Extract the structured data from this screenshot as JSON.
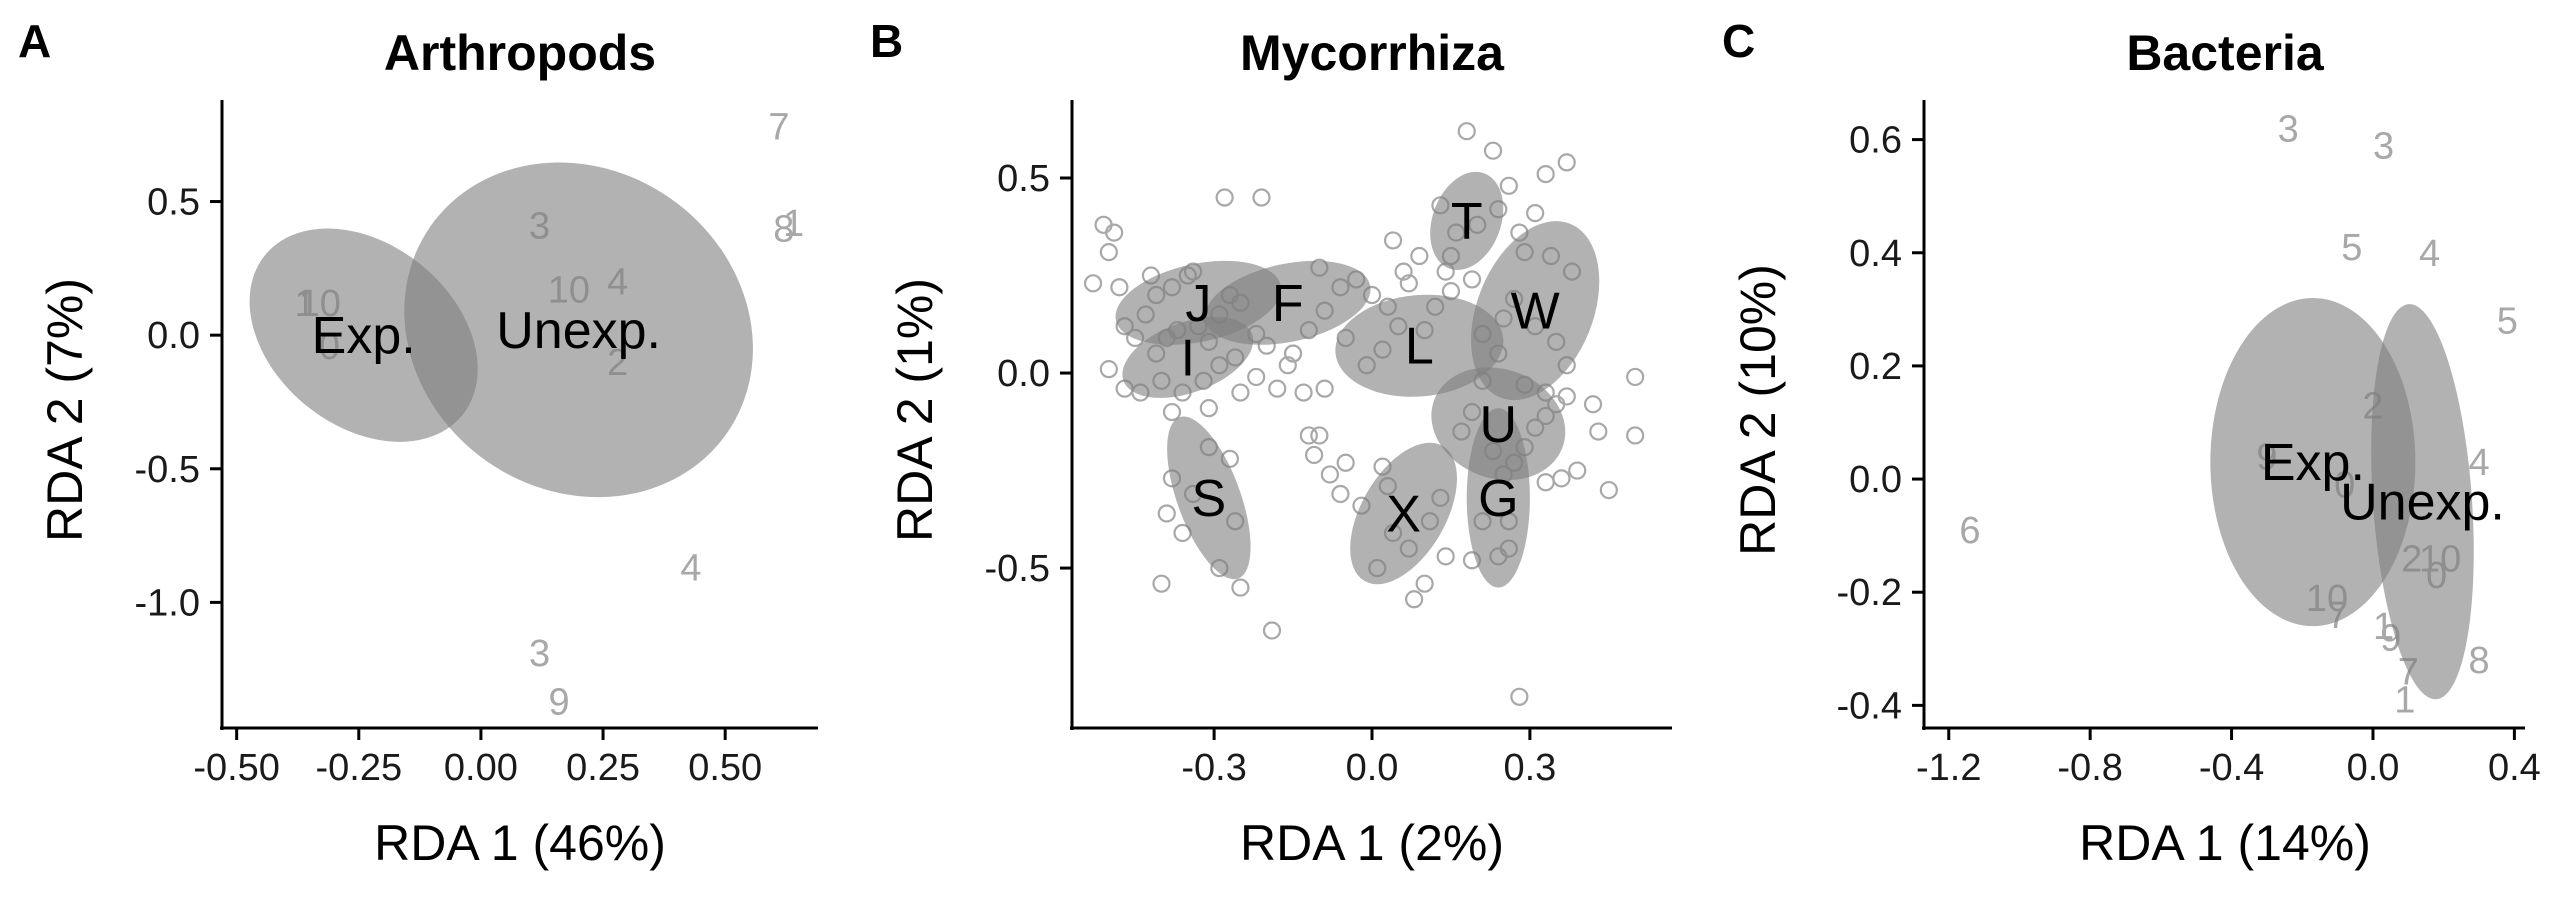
{
  "chart_data": [
    {
      "panel": "A",
      "type": "scatter",
      "title": "Arthropods",
      "xlabel": "RDA 1 (46%)",
      "ylabel": "RDA 2 (7%)",
      "xlim": [
        -0.53,
        0.69
      ],
      "ylim": [
        -1.47,
        0.88
      ],
      "xticks": [
        -0.5,
        -0.25,
        0.0,
        0.25,
        0.5
      ],
      "xtick_labels": [
        "-0.50",
        "-0.25",
        "0.00",
        "0.25",
        "0.50"
      ],
      "yticks": [
        -1.0,
        -0.5,
        0.0,
        0.5
      ],
      "ytick_labels": [
        "-1.0",
        "-0.5",
        "0.0",
        "0.5"
      ],
      "ellipses": [
        {
          "label": "Exp.",
          "cx": -0.24,
          "cy": 0.0,
          "rx": 0.26,
          "ry": 0.34,
          "angle": 39
        },
        {
          "label": "Unexp.",
          "cx": 0.2,
          "cy": 0.02,
          "rx": 0.37,
          "ry": 0.6,
          "angle": 35
        }
      ],
      "point_labels": [
        {
          "text": "7",
          "x": 0.61,
          "y": 0.78
        },
        {
          "text": "8",
          "x": 0.62,
          "y": 0.4
        },
        {
          "text": "1",
          "x": 0.64,
          "y": 0.42
        },
        {
          "text": "3",
          "x": 0.12,
          "y": 0.41
        },
        {
          "text": "10",
          "x": 0.18,
          "y": 0.17
        },
        {
          "text": "4",
          "x": 0.28,
          "y": 0.2
        },
        {
          "text": "2",
          "x": 0.28,
          "y": -0.1
        },
        {
          "text": "1",
          "x": -0.36,
          "y": 0.12
        },
        {
          "text": "10",
          "x": -0.33,
          "y": 0.12
        },
        {
          "text": "0",
          "x": -0.31,
          "y": -0.04
        },
        {
          "text": "4",
          "x": 0.43,
          "y": -0.87
        },
        {
          "text": "3",
          "x": 0.12,
          "y": -1.19
        },
        {
          "text": "9",
          "x": 0.16,
          "y": -1.37
        }
      ]
    },
    {
      "panel": "B",
      "type": "scatter",
      "title": "Mycorrhiza",
      "xlabel": "RDA 1 (2%)",
      "ylabel": "RDA 2 (1%)",
      "xlim": [
        -0.57,
        0.57
      ],
      "ylim": [
        -0.91,
        0.7
      ],
      "xticks": [
        -0.3,
        0.0,
        0.3
      ],
      "xtick_labels": [
        "-0.3",
        "0.0",
        "0.3"
      ],
      "yticks": [
        -0.5,
        0.0,
        0.5
      ],
      "ytick_labels": [
        "-0.5",
        "0.0",
        "0.5"
      ],
      "ellipses": [
        {
          "label": "J",
          "cx": -0.33,
          "cy": 0.18,
          "rx": 0.16,
          "ry": 0.1,
          "angle": -12
        },
        {
          "label": "F",
          "cx": -0.16,
          "cy": 0.18,
          "rx": 0.16,
          "ry": 0.1,
          "angle": -12
        },
        {
          "label": "I",
          "cx": -0.35,
          "cy": 0.04,
          "rx": 0.13,
          "ry": 0.09,
          "angle": -20
        },
        {
          "label": "L",
          "cx": 0.09,
          "cy": 0.07,
          "rx": 0.16,
          "ry": 0.13,
          "angle": -5
        },
        {
          "label": "T",
          "cx": 0.18,
          "cy": 0.39,
          "rx": 0.065,
          "ry": 0.13,
          "angle": 20
        },
        {
          "label": "W",
          "cx": 0.31,
          "cy": 0.16,
          "rx": 0.11,
          "ry": 0.24,
          "angle": 22
        },
        {
          "label": "U",
          "cx": 0.24,
          "cy": -0.13,
          "rx": 0.13,
          "ry": 0.14,
          "angle": 20
        },
        {
          "label": "G",
          "cx": 0.24,
          "cy": -0.32,
          "rx": 0.06,
          "ry": 0.23,
          "angle": 0
        },
        {
          "label": "X",
          "cx": 0.06,
          "cy": -0.36,
          "rx": 0.08,
          "ry": 0.2,
          "angle": 30
        },
        {
          "label": "S",
          "cx": -0.31,
          "cy": -0.32,
          "rx": 0.06,
          "ry": 0.22,
          "angle": -20
        }
      ],
      "points": [
        [
          -0.51,
          0.38
        ],
        [
          -0.49,
          0.36
        ],
        [
          -0.5,
          0.31
        ],
        [
          -0.53,
          0.23
        ],
        [
          -0.48,
          0.22
        ],
        [
          -0.47,
          0.12
        ],
        [
          -0.45,
          0.09
        ],
        [
          -0.43,
          0.15
        ],
        [
          -0.41,
          0.2
        ],
        [
          -0.38,
          0.22
        ],
        [
          -0.35,
          0.25
        ],
        [
          -0.34,
          0.26
        ],
        [
          -0.39,
          0.09
        ],
        [
          -0.41,
          0.05
        ],
        [
          -0.37,
          0.11
        ],
        [
          -0.33,
          0.12
        ],
        [
          -0.31,
          0.08
        ],
        [
          -0.29,
          0.15
        ],
        [
          -0.27,
          0.2
        ],
        [
          -0.25,
          0.18
        ],
        [
          -0.22,
          0.1
        ],
        [
          -0.2,
          0.07
        ],
        [
          -0.26,
          0.04
        ],
        [
          -0.29,
          0.02
        ],
        [
          -0.32,
          -0.02
        ],
        [
          -0.36,
          -0.05
        ],
        [
          -0.4,
          -0.02
        ],
        [
          -0.44,
          -0.05
        ],
        [
          -0.47,
          -0.04
        ],
        [
          -0.5,
          0.01
        ],
        [
          -0.38,
          -0.1
        ],
        [
          -0.31,
          -0.09
        ],
        [
          -0.25,
          -0.05
        ],
        [
          -0.22,
          -0.01
        ],
        [
          -0.18,
          -0.04
        ],
        [
          -0.15,
          0.05
        ],
        [
          -0.12,
          0.11
        ],
        [
          -0.09,
          0.16
        ],
        [
          -0.06,
          0.22
        ],
        [
          -0.1,
          0.27
        ],
        [
          -0.03,
          0.24
        ],
        [
          0.0,
          0.2
        ],
        [
          0.03,
          0.17
        ],
        [
          0.05,
          0.12
        ],
        [
          0.02,
          0.06
        ],
        [
          -0.01,
          0.02
        ],
        [
          -0.05,
          0.09
        ],
        [
          -0.13,
          -0.05
        ],
        [
          -0.16,
          0.02
        ],
        [
          -0.28,
          0.45
        ],
        [
          -0.21,
          0.45
        ],
        [
          -0.42,
          0.25
        ],
        [
          -0.38,
          -0.27
        ],
        [
          -0.39,
          -0.36
        ],
        [
          -0.36,
          -0.41
        ],
        [
          -0.34,
          -0.31
        ],
        [
          -0.31,
          -0.19
        ],
        [
          -0.27,
          -0.22
        ],
        [
          -0.29,
          -0.5
        ],
        [
          -0.26,
          -0.38
        ],
        [
          -0.25,
          -0.55
        ],
        [
          -0.4,
          -0.54
        ],
        [
          -0.19,
          -0.66
        ],
        [
          -0.12,
          -0.16
        ],
        [
          -0.1,
          -0.16
        ],
        [
          -0.11,
          -0.21
        ],
        [
          -0.08,
          -0.26
        ],
        [
          -0.06,
          -0.31
        ],
        [
          -0.05,
          -0.23
        ],
        [
          -0.02,
          -0.34
        ],
        [
          0.02,
          -0.24
        ],
        [
          0.03,
          -0.29
        ],
        [
          0.01,
          -0.5
        ],
        [
          0.04,
          -0.41
        ],
        [
          0.07,
          -0.45
        ],
        [
          0.08,
          -0.58
        ],
        [
          0.1,
          -0.54
        ],
        [
          0.11,
          -0.38
        ],
        [
          0.13,
          -0.32
        ],
        [
          0.14,
          -0.47
        ],
        [
          0.17,
          -0.15
        ],
        [
          0.19,
          -0.1
        ],
        [
          0.21,
          -0.02
        ],
        [
          0.23,
          -0.2
        ],
        [
          0.25,
          -0.26
        ],
        [
          0.27,
          -0.23
        ],
        [
          0.29,
          -0.19
        ],
        [
          0.31,
          -0.14
        ],
        [
          0.33,
          -0.11
        ],
        [
          0.35,
          -0.08
        ],
        [
          0.37,
          -0.06
        ],
        [
          0.39,
          -0.25
        ],
        [
          0.36,
          -0.27
        ],
        [
          0.33,
          -0.28
        ],
        [
          0.21,
          -0.38
        ],
        [
          0.26,
          -0.38
        ],
        [
          0.26,
          -0.45
        ],
        [
          0.24,
          -0.47
        ],
        [
          0.19,
          -0.48
        ],
        [
          0.45,
          -0.3
        ],
        [
          0.5,
          -0.01
        ],
        [
          0.5,
          -0.16
        ],
        [
          0.43,
          -0.15
        ],
        [
          0.42,
          -0.08
        ],
        [
          0.18,
          0.62
        ],
        [
          0.23,
          0.57
        ],
        [
          0.26,
          0.48
        ],
        [
          0.24,
          0.42
        ],
        [
          0.2,
          0.38
        ],
        [
          0.16,
          0.36
        ],
        [
          0.13,
          0.43
        ],
        [
          0.15,
          0.3
        ],
        [
          0.14,
          0.26
        ],
        [
          0.28,
          0.36
        ],
        [
          0.31,
          0.41
        ],
        [
          0.33,
          0.51
        ],
        [
          0.37,
          0.54
        ],
        [
          0.34,
          0.3
        ],
        [
          0.38,
          0.26
        ],
        [
          0.29,
          0.31
        ],
        [
          0.27,
          0.19
        ],
        [
          0.25,
          0.14
        ],
        [
          0.31,
          0.12
        ],
        [
          0.35,
          0.08
        ],
        [
          0.37,
          0.02
        ],
        [
          0.33,
          -0.05
        ],
        [
          0.29,
          -0.03
        ],
        [
          0.24,
          0.05
        ],
        [
          0.21,
          0.1
        ],
        [
          0.19,
          0.24
        ],
        [
          0.15,
          0.21
        ],
        [
          0.12,
          0.17
        ],
        [
          0.1,
          0.11
        ],
        [
          0.07,
          0.23
        ],
        [
          0.06,
          0.26
        ],
        [
          0.04,
          0.34
        ],
        [
          0.09,
          0.3
        ],
        [
          0.28,
          -0.83
        ],
        [
          -0.15,
          0.05
        ],
        [
          -0.09,
          -0.04
        ]
      ]
    },
    {
      "panel": "C",
      "type": "scatter",
      "title": "Bacteria",
      "xlabel": "RDA 1 (14%)",
      "ylabel": "RDA 2 (10%)",
      "xlim": [
        -1.27,
        0.43
      ],
      "ylim": [
        -0.44,
        0.67
      ],
      "xticks": [
        -1.2,
        -0.8,
        -0.4,
        0.0,
        0.4
      ],
      "xtick_labels": [
        "-1.2",
        "-0.8",
        "-0.4",
        "0.0",
        "0.4"
      ],
      "yticks": [
        -0.4,
        -0.2,
        0.0,
        0.2,
        0.4,
        0.6
      ],
      "ytick_labels": [
        "-0.4",
        "-0.2",
        "0.0",
        "0.2",
        "0.4",
        "0.6"
      ],
      "ellipses": [
        {
          "label": "Exp.",
          "cx": -0.17,
          "cy": 0.03,
          "rx": 0.29,
          "ry": 0.29,
          "angle": 0
        },
        {
          "label": "Unexp.",
          "cx": 0.14,
          "cy": -0.04,
          "rx": 0.14,
          "ry": 0.35,
          "angle": -4
        }
      ],
      "point_labels": [
        {
          "text": "3",
          "x": -0.24,
          "y": 0.62
        },
        {
          "text": "3",
          "x": 0.03,
          "y": 0.59
        },
        {
          "text": "5",
          "x": -0.06,
          "y": 0.41
        },
        {
          "text": "4",
          "x": 0.16,
          "y": 0.4
        },
        {
          "text": "5",
          "x": 0.38,
          "y": 0.28
        },
        {
          "text": "2",
          "x": 0.0,
          "y": 0.13
        },
        {
          "text": "9",
          "x": -0.3,
          "y": 0.04
        },
        {
          "text": "4",
          "x": 0.3,
          "y": 0.03
        },
        {
          "text": "0",
          "x": -0.08,
          "y": -0.01
        },
        {
          "text": "6",
          "x": -1.14,
          "y": -0.09
        },
        {
          "text": "2",
          "x": 0.11,
          "y": -0.14
        },
        {
          "text": "10",
          "x": 0.19,
          "y": -0.14
        },
        {
          "text": "0",
          "x": 0.18,
          "y": -0.17
        },
        {
          "text": "10",
          "x": -0.13,
          "y": -0.21
        },
        {
          "text": "7",
          "x": -0.1,
          "y": -0.24
        },
        {
          "text": "1",
          "x": 0.03,
          "y": -0.26
        },
        {
          "text": "9",
          "x": 0.05,
          "y": -0.28
        },
        {
          "text": "7",
          "x": 0.1,
          "y": -0.34
        },
        {
          "text": "1",
          "x": 0.09,
          "y": -0.39
        },
        {
          "text": "8",
          "x": 0.3,
          "y": -0.32
        }
      ]
    }
  ]
}
